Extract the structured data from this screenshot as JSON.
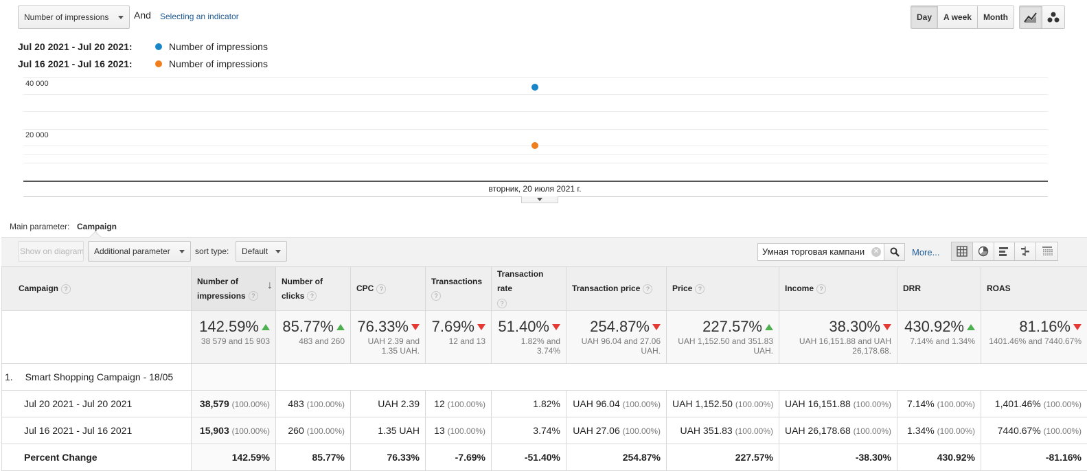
{
  "toolbar": {
    "metric_select": "Number of impressions",
    "and_label": "And",
    "select_indicator": "Selecting an indicator",
    "period": {
      "day": "Day",
      "week": "A week",
      "month": "Month",
      "active": "day"
    },
    "chart_types": [
      "line-chart-icon",
      "motion-chart-icon"
    ]
  },
  "legend": [
    {
      "range": "Jul 20 2021 - Jul 20 2021:",
      "metric": "Number of impressions",
      "color": "#1a86c8"
    },
    {
      "range": "Jul 16 2021 - Jul 16 2021:",
      "metric": "Number of impressions",
      "color": "#f07e1c"
    }
  ],
  "chart_data": {
    "type": "scatter",
    "x": [
      "вторник, 20 июля 2021 г."
    ],
    "series": [
      {
        "name": "Jul 20 2021 - Jul 20 2021: Number of impressions",
        "values": [
          38579
        ],
        "color": "#1a86c8"
      },
      {
        "name": "Jul 16 2021 - Jul 16 2021: Number of impressions",
        "values": [
          15903
        ],
        "color": "#f07e1c"
      }
    ],
    "yticks": [
      20000,
      40000
    ],
    "ytick_labels": [
      "20 000",
      "40 000"
    ],
    "xlabel": "вторник, 20 июля 2021 г."
  },
  "params": {
    "main_label": "Main parameter:",
    "main_value": "Campaign",
    "show_on_diagram": "Show on diagram",
    "additional": "Additional parameter",
    "sort_label": "sort type:",
    "sort_value": "Default",
    "search_value": "Умная торговая кампани",
    "more": "More..."
  },
  "table": {
    "headers": [
      "Campaign",
      "Number of impressions",
      "Number of clicks",
      "CPC",
      "Transactions",
      "Transaction rate",
      "Transaction price",
      "Price",
      "Income",
      "DRR",
      "ROAS"
    ],
    "summary": [
      {
        "value": "142.59%",
        "dir": "up",
        "sub": "38 579 and 15 903"
      },
      {
        "value": "85.77%",
        "dir": "up",
        "sub": "483 and 260"
      },
      {
        "value": "76.33%",
        "dir": "down",
        "sub": "UAH 2.39 and 1.35 UAH."
      },
      {
        "value": "7.69%",
        "dir": "down",
        "sub": "12 and 13"
      },
      {
        "value": "51.40%",
        "dir": "down",
        "sub": "1.82% and 3.74%"
      },
      {
        "value": "254.87%",
        "dir": "down",
        "sub": "UAH 96.04 and 27.06 UAH."
      },
      {
        "value": "227.57%",
        "dir": "up",
        "sub": "UAH 1,152.50 and 351.83 UAH."
      },
      {
        "value": "38.30%",
        "dir": "down",
        "sub": "UAH 16,151.88 and UAH 26,178.68."
      },
      {
        "value": "430.92%",
        "dir": "up",
        "sub": "7.14% and 1.34%"
      },
      {
        "value": "81.16%",
        "dir": "down",
        "sub": "1401.46% and 7440.67%"
      }
    ],
    "group": {
      "index": "1.",
      "name": "Smart Shopping Campaign - 18/05"
    },
    "rows": [
      {
        "label": "Jul 20 2021 - Jul 20 2021",
        "cells": [
          {
            "v": "38,579",
            "p": "(100.00%)",
            "bold": true
          },
          {
            "v": "483",
            "p": "(100.00%)"
          },
          {
            "v": "UAH 2.39",
            "p": ""
          },
          {
            "v": "12",
            "p": "(100.00%)"
          },
          {
            "v": "1.82%",
            "p": ""
          },
          {
            "v": "UAH 96.04",
            "p": "(100.00%)"
          },
          {
            "v": "UAH 1,152.50",
            "p": "(100.00%)"
          },
          {
            "v": "UAH 16,151.88",
            "p": "(100.00%)"
          },
          {
            "v": "7.14%",
            "p": "(100.00%)"
          },
          {
            "v": "1,401.46%",
            "p": "(100.00%)"
          }
        ]
      },
      {
        "label": "Jul 16 2021 - Jul 16 2021",
        "cells": [
          {
            "v": "15,903",
            "p": "(100.00%)",
            "bold": true
          },
          {
            "v": "260",
            "p": "(100.00%)"
          },
          {
            "v": "1.35 UAH",
            "p": ""
          },
          {
            "v": "13",
            "p": "(100.00%)"
          },
          {
            "v": "3.74%",
            "p": ""
          },
          {
            "v": "UAH 27.06",
            "p": "(100.00%)"
          },
          {
            "v": "UAH 351.83",
            "p": "(100.00%)"
          },
          {
            "v": "UAH 26,178.68",
            "p": "(100.00%)"
          },
          {
            "v": "1.34%",
            "p": "(100.00%)"
          },
          {
            "v": "7440.67%",
            "p": "(100.00%)"
          }
        ]
      }
    ],
    "percent_change": {
      "label": "Percent Change",
      "values": [
        "142.59%",
        "85.77%",
        "76.33%",
        "-7.69%",
        "-51.40%",
        "254.87%",
        "227.57%",
        "-38.30%",
        "430.92%",
        "-81.16%"
      ]
    }
  },
  "colors": {
    "up": "#4caf50",
    "down": "#e53935",
    "blue": "#1a86c8",
    "orange": "#f07e1c"
  }
}
